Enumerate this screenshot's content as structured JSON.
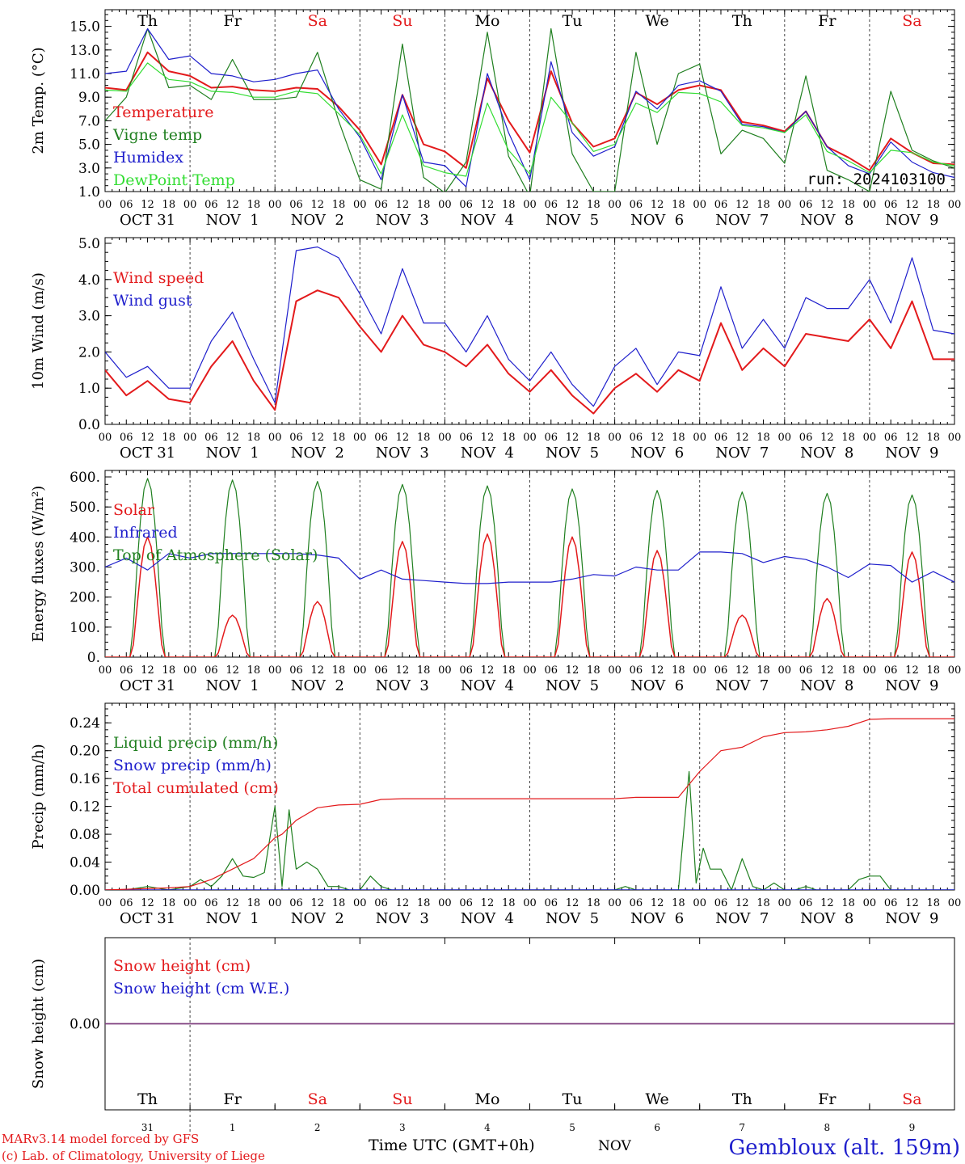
{
  "footer": {
    "model_line": "MARv3.14 model forced by GFS",
    "credit_line": "(c) Lab. of Climatology, University of Liege",
    "time_label": "Time UTC (GMT+0h)",
    "month_label": "NOV",
    "station": "Gembloux (alt. 159m)"
  },
  "colors": {
    "red": "#e31a1c",
    "green": "#1f7f1f",
    "blue": "#1f1fcc",
    "lightgreen": "#33dd33",
    "purple": "#7f3f7f",
    "axis": "#000000",
    "grid": "#444444"
  },
  "weekdays": [
    "Th",
    "Fr",
    "Sa",
    "Su",
    "Mo",
    "Tu",
    "We",
    "Th",
    "Fr",
    "Sa"
  ],
  "weekend_days": [
    "Sa",
    "Su"
  ],
  "date_labels": [
    "OCT 31",
    "NOV  1",
    "NOV  2",
    "NOV  3",
    "NOV  4",
    "NOV  5",
    "NOV  6",
    "NOV  7",
    "NOV  8",
    "NOV  9"
  ],
  "hour_labels": [
    "00",
    "06",
    "12",
    "18"
  ],
  "end_hour_label": "00",
  "bottom_day_numbers": [
    "31",
    "1",
    "2",
    "3",
    "4",
    "5",
    "6",
    "7",
    "8",
    "9"
  ],
  "chart_data": [
    {
      "id": "temperature",
      "type": "line",
      "ylabel": "2m Temp. (°C)",
      "ylim": [
        1,
        16
      ],
      "yticks": [
        "1.0",
        "3.0",
        "5.0",
        "7.0",
        "9.0",
        "11.0",
        "13.0",
        "15.0"
      ],
      "run_label": "run: 2024103100",
      "x_unit": "hours since 2024-10-31 00 UTC",
      "legend": [
        "Temperature",
        "Vigne temp",
        "Humidex",
        "DewPoint Temp"
      ],
      "series": [
        {
          "name": "Temperature",
          "color": "red",
          "x": [
            0,
            6,
            12,
            18,
            24,
            30,
            36,
            42,
            48,
            54,
            60,
            66,
            72,
            78,
            84,
            90,
            96,
            102,
            108,
            114,
            120,
            126,
            132,
            138,
            144,
            150,
            156,
            162,
            168,
            174,
            180,
            186,
            192,
            198,
            204,
            210,
            216,
            222,
            228,
            234,
            240
          ],
          "values": [
            9.8,
            9.6,
            12.8,
            11.2,
            10.8,
            9.8,
            9.9,
            9.6,
            9.5,
            9.8,
            9.7,
            8.2,
            6.2,
            3.3,
            9.2,
            5.0,
            4.4,
            3.0,
            10.6,
            7.0,
            4.3,
            11.2,
            6.8,
            4.8,
            5.5,
            9.4,
            8.4,
            9.6,
            10.0,
            9.6,
            6.9,
            6.6,
            6.1,
            7.8,
            4.8,
            3.9,
            2.8,
            5.5,
            4.3,
            3.4,
            3.3
          ]
        },
        {
          "name": "Vigne temp",
          "color": "green",
          "x": [
            0,
            6,
            12,
            18,
            24,
            30,
            36,
            42,
            48,
            54,
            60,
            66,
            72,
            78,
            84,
            90,
            96,
            102,
            108,
            114,
            120,
            126,
            132,
            138,
            144,
            150,
            156,
            162,
            168,
            174,
            180,
            186,
            192,
            198,
            204,
            210,
            216,
            222,
            228,
            234,
            240
          ],
          "values": [
            7.0,
            9.0,
            14.8,
            9.8,
            10.0,
            8.8,
            12.2,
            8.8,
            8.8,
            9.0,
            12.8,
            7.0,
            2.0,
            1.2,
            13.5,
            2.2,
            0.9,
            3.5,
            14.5,
            4.0,
            0.6,
            14.8,
            4.2,
            1.0,
            1.0,
            12.8,
            5.0,
            11.0,
            11.8,
            4.2,
            6.2,
            5.5,
            3.4,
            10.8,
            2.8,
            2.0,
            1.0,
            9.5,
            4.5,
            3.6,
            3.0
          ]
        },
        {
          "name": "Humidex",
          "color": "blue",
          "x": [
            0,
            6,
            12,
            18,
            24,
            30,
            36,
            42,
            48,
            54,
            60,
            66,
            72,
            78,
            84,
            90,
            96,
            102,
            108,
            114,
            120,
            126,
            132,
            138,
            144,
            150,
            156,
            162,
            168,
            174,
            180,
            186,
            192,
            198,
            204,
            210,
            216,
            222,
            228,
            234,
            240
          ],
          "values": [
            11.0,
            11.2,
            14.8,
            12.2,
            12.5,
            11.0,
            10.8,
            10.3,
            10.5,
            11.0,
            11.3,
            8.0,
            5.6,
            2.0,
            9.2,
            3.5,
            3.2,
            1.4,
            11.0,
            6.0,
            2.0,
            12.0,
            6.0,
            4.0,
            4.8,
            9.5,
            8.0,
            10.0,
            10.4,
            9.5,
            6.7,
            6.5,
            6.0,
            7.8,
            4.8,
            3.2,
            2.5,
            5.2,
            3.5,
            2.6,
            2.2
          ]
        },
        {
          "name": "DewPoint Temp",
          "color": "lightgreen",
          "x": [
            0,
            6,
            12,
            18,
            24,
            30,
            36,
            42,
            48,
            54,
            60,
            66,
            72,
            78,
            84,
            90,
            96,
            102,
            108,
            114,
            120,
            126,
            132,
            138,
            144,
            150,
            156,
            162,
            168,
            174,
            180,
            186,
            192,
            198,
            204,
            210,
            216,
            222,
            228,
            234,
            240
          ],
          "values": [
            9.6,
            9.5,
            11.9,
            10.5,
            10.3,
            9.5,
            9.4,
            9.0,
            9.0,
            9.5,
            9.3,
            7.6,
            5.8,
            2.5,
            7.5,
            3.2,
            2.6,
            2.3,
            8.5,
            4.5,
            2.5,
            9.0,
            6.8,
            4.4,
            5.0,
            8.5,
            7.7,
            9.4,
            9.3,
            8.6,
            6.6,
            6.4,
            6.0,
            7.5,
            4.4,
            3.6,
            2.6,
            4.5,
            4.3,
            3.5,
            3.2
          ]
        }
      ]
    },
    {
      "id": "wind",
      "type": "line",
      "ylabel": "10m Wind (m/s)",
      "ylim": [
        0,
        5
      ],
      "yticks": [
        "0.0",
        "1.0",
        "2.0",
        "3.0",
        "4.0",
        "5.0"
      ],
      "legend": [
        "Wind speed",
        "Wind gust"
      ],
      "series": [
        {
          "name": "Wind speed",
          "color": "red",
          "x": [
            0,
            6,
            12,
            18,
            24,
            30,
            36,
            42,
            48,
            54,
            60,
            66,
            72,
            78,
            84,
            90,
            96,
            102,
            108,
            114,
            120,
            126,
            132,
            138,
            144,
            150,
            156,
            162,
            168,
            174,
            180,
            186,
            192,
            198,
            204,
            210,
            216,
            222,
            228,
            234,
            240
          ],
          "values": [
            1.5,
            0.8,
            1.2,
            0.7,
            0.6,
            1.6,
            2.3,
            1.2,
            0.4,
            3.4,
            3.7,
            3.5,
            2.7,
            2.0,
            3.0,
            2.2,
            2.0,
            1.6,
            2.2,
            1.4,
            0.9,
            1.5,
            0.8,
            0.3,
            1.0,
            1.4,
            0.9,
            1.5,
            1.2,
            2.8,
            1.5,
            2.1,
            1.6,
            2.5,
            2.4,
            2.3,
            2.9,
            2.1,
            3.4,
            1.8,
            1.8
          ]
        },
        {
          "name": "Wind gust",
          "color": "blue",
          "x": [
            0,
            6,
            12,
            18,
            24,
            30,
            36,
            42,
            48,
            54,
            60,
            66,
            72,
            78,
            84,
            90,
            96,
            102,
            108,
            114,
            120,
            126,
            132,
            138,
            144,
            150,
            156,
            162,
            168,
            174,
            180,
            186,
            192,
            198,
            204,
            210,
            216,
            222,
            228,
            234,
            240
          ],
          "values": [
            2.0,
            1.3,
            1.6,
            1.0,
            1.0,
            2.3,
            3.1,
            1.8,
            0.6,
            4.8,
            4.9,
            4.6,
            3.6,
            2.5,
            4.3,
            2.8,
            2.8,
            2.0,
            3.0,
            1.8,
            1.2,
            2.0,
            1.1,
            0.5,
            1.6,
            2.1,
            1.1,
            2.0,
            1.9,
            3.8,
            2.1,
            2.9,
            2.1,
            3.5,
            3.2,
            3.2,
            4.0,
            2.8,
            4.6,
            2.6,
            2.5
          ]
        }
      ]
    },
    {
      "id": "energy",
      "type": "line",
      "ylabel": "Energy fluxes (W/m²)",
      "ylim": [
        0,
        600
      ],
      "yticks": [
        "0.",
        "100.",
        "200.",
        "300.",
        "400.",
        "500.",
        "600."
      ],
      "legend": [
        "Solar",
        "Infrared",
        "Top of Atmosphere (Solar)"
      ],
      "solar_peaks": [
        400,
        140,
        185,
        385,
        410,
        400,
        355,
        140,
        195,
        350
      ],
      "toa_peaks": [
        595,
        590,
        585,
        575,
        570,
        560,
        555,
        550,
        545,
        540
      ],
      "series": [
        {
          "name": "Infrared",
          "color": "blue",
          "x": [
            0,
            6,
            12,
            18,
            24,
            30,
            36,
            42,
            48,
            54,
            60,
            66,
            72,
            78,
            84,
            90,
            96,
            102,
            108,
            114,
            120,
            126,
            132,
            138,
            144,
            150,
            156,
            162,
            168,
            174,
            180,
            186,
            192,
            198,
            204,
            210,
            216,
            222,
            228,
            234,
            240
          ],
          "values": [
            300,
            330,
            290,
            345,
            330,
            345,
            345,
            345,
            345,
            345,
            340,
            330,
            260,
            290,
            260,
            255,
            250,
            245,
            245,
            250,
            250,
            250,
            260,
            275,
            270,
            300,
            290,
            290,
            350,
            350,
            345,
            315,
            335,
            325,
            300,
            265,
            310,
            305,
            250,
            285,
            250
          ]
        }
      ]
    },
    {
      "id": "precip",
      "type": "line",
      "ylabel": "Precip (mm/h)",
      "ylim": [
        0,
        0.26
      ],
      "yticks": [
        "0.00",
        "0.04",
        "0.08",
        "0.12",
        "0.16",
        "0.20",
        "0.24"
      ],
      "legend": [
        "Liquid precip (mm/h)",
        "Snow precip (mm/h)",
        "Total cumulated (cm)"
      ],
      "series": [
        {
          "name": "Liquid precip (mm/h)",
          "color": "green",
          "x": [
            0,
            6,
            12,
            18,
            24,
            27,
            30,
            33,
            36,
            39,
            42,
            45,
            48,
            50,
            52,
            54,
            57,
            60,
            63,
            66,
            69,
            72,
            75,
            78,
            81,
            84,
            90,
            96,
            144,
            147,
            150,
            156,
            162,
            165,
            167,
            169,
            171,
            174,
            177,
            180,
            183,
            186,
            189,
            192,
            195,
            198,
            201,
            204,
            210,
            213,
            216,
            219,
            222,
            240
          ],
          "values": [
            0.0,
            0.0,
            0.005,
            0.0,
            0.005,
            0.015,
            0.005,
            0.02,
            0.045,
            0.02,
            0.018,
            0.025,
            0.12,
            0.005,
            0.115,
            0.03,
            0.04,
            0.03,
            0.005,
            0.005,
            0.0,
            0.0,
            0.02,
            0.005,
            0.0,
            0.0,
            0.0,
            0.0,
            0.0,
            0.005,
            0.0,
            0.0,
            0.0,
            0.17,
            0.01,
            0.06,
            0.03,
            0.03,
            0.0,
            0.045,
            0.005,
            0.0,
            0.01,
            0.0,
            0.0,
            0.005,
            0.0,
            0.0,
            0.0,
            0.015,
            0.02,
            0.02,
            0.0,
            0.0
          ]
        },
        {
          "name": "Snow precip (mm/h)",
          "color": "blue",
          "x": [
            0,
            240
          ],
          "values": [
            0.0,
            0.0
          ]
        },
        {
          "name": "Total cumulated (cm)",
          "color": "red",
          "x": [
            0,
            18,
            24,
            30,
            36,
            42,
            48,
            50,
            54,
            60,
            66,
            72,
            78,
            84,
            96,
            120,
            144,
            150,
            162,
            168,
            174,
            180,
            186,
            192,
            198,
            204,
            210,
            216,
            222,
            228,
            240
          ],
          "values": [
            0.0,
            0.003,
            0.005,
            0.015,
            0.03,
            0.045,
            0.075,
            0.08,
            0.1,
            0.118,
            0.122,
            0.123,
            0.13,
            0.131,
            0.131,
            0.131,
            0.131,
            0.133,
            0.133,
            0.17,
            0.2,
            0.205,
            0.22,
            0.226,
            0.227,
            0.23,
            0.235,
            0.245,
            0.246,
            0.246,
            0.246
          ]
        }
      ]
    },
    {
      "id": "snow",
      "type": "line",
      "ylabel": "Snow height (cm)",
      "ylim": [
        -1,
        1
      ],
      "yticks": [
        "0.00"
      ],
      "legend": [
        "Snow height (cm)",
        "Snow height (cm W.E.)"
      ],
      "series": [
        {
          "name": "Snow height (cm)",
          "color": "red",
          "x": [
            0,
            240
          ],
          "values": [
            0.0,
            0.0
          ]
        },
        {
          "name": "Snow height (cm W.E.)",
          "color": "blue",
          "x": [
            0,
            240
          ],
          "values": [
            0.0,
            0.0
          ]
        }
      ]
    }
  ]
}
